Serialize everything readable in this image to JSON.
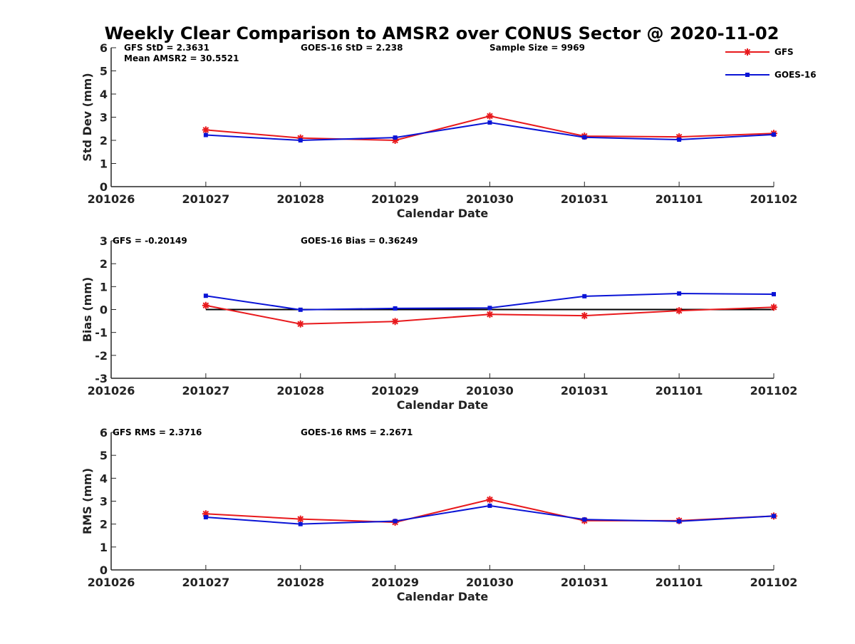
{
  "title": "Weekly Clear Comparison to AMSR2 over CONUS Sector @ 2020-11-02",
  "legend": {
    "position": "top-right",
    "entries": [
      {
        "label": "GFS",
        "color": "#e8191c",
        "marker": "asterisk"
      },
      {
        "label": "GOES-16",
        "color": "#0a14d6",
        "marker": "square"
      }
    ]
  },
  "chart_data": [
    {
      "type": "line",
      "categories": [
        "201026",
        "201027",
        "201028",
        "201029",
        "201030",
        "201031",
        "201101",
        "201102"
      ],
      "xlabel": "Calendar Date",
      "ylabel": "Std Dev (mm)",
      "ylim": [
        0,
        6
      ],
      "yticks": [
        0,
        1,
        2,
        3,
        4,
        5,
        6
      ],
      "grid": false,
      "reference_line": null,
      "annotations": {
        "gfs": "GFS StD = 2.3631",
        "goes": "GOES-16 StD = 2.238",
        "sample": "Sample Size = 9969",
        "mean": "Mean AMSR2 = 30.5521"
      },
      "series": [
        {
          "name": "GFS",
          "color": "#e8191c",
          "marker": "asterisk",
          "values": [
            null,
            2.45,
            2.1,
            2.0,
            3.05,
            2.18,
            2.15,
            2.3
          ]
        },
        {
          "name": "GOES-16",
          "color": "#0a14d6",
          "marker": "square",
          "values": [
            null,
            2.23,
            2.0,
            2.12,
            2.77,
            2.13,
            2.03,
            2.25
          ]
        }
      ]
    },
    {
      "type": "line",
      "categories": [
        "201026",
        "201027",
        "201028",
        "201029",
        "201030",
        "201031",
        "201101",
        "201102"
      ],
      "xlabel": "Calendar Date",
      "ylabel": "Bias (mm)",
      "ylim": [
        -3,
        3
      ],
      "yticks": [
        -3,
        -2,
        -1,
        0,
        1,
        2,
        3
      ],
      "grid": false,
      "reference_line": 0,
      "annotations": {
        "gfs": "GFS = -0.20149",
        "goes": "GOES-16 Bias  = 0.36249"
      },
      "series": [
        {
          "name": "GFS",
          "color": "#e8191c",
          "marker": "asterisk",
          "values": [
            null,
            0.18,
            -0.63,
            -0.52,
            -0.21,
            -0.27,
            -0.05,
            0.1
          ]
        },
        {
          "name": "GOES-16",
          "color": "#0a14d6",
          "marker": "square",
          "values": [
            null,
            0.6,
            -0.01,
            0.05,
            0.07,
            0.58,
            0.7,
            0.67
          ]
        }
      ]
    },
    {
      "type": "line",
      "categories": [
        "201026",
        "201027",
        "201028",
        "201029",
        "201030",
        "201031",
        "201101",
        "201102"
      ],
      "xlabel": "Calendar Date",
      "ylabel": "RMS (mm)",
      "ylim": [
        0,
        6
      ],
      "yticks": [
        0,
        1,
        2,
        3,
        4,
        5,
        6
      ],
      "grid": false,
      "reference_line": null,
      "annotations": {
        "gfs": "GFS RMS = 2.3716",
        "goes": "GOES-16 RMS = 2.2671"
      },
      "series": [
        {
          "name": "GFS",
          "color": "#e8191c",
          "marker": "asterisk",
          "values": [
            null,
            2.45,
            2.22,
            2.08,
            3.07,
            2.15,
            2.15,
            2.35
          ]
        },
        {
          "name": "GOES-16",
          "color": "#0a14d6",
          "marker": "square",
          "values": [
            null,
            2.3,
            2.0,
            2.13,
            2.8,
            2.2,
            2.12,
            2.35
          ]
        }
      ]
    }
  ]
}
